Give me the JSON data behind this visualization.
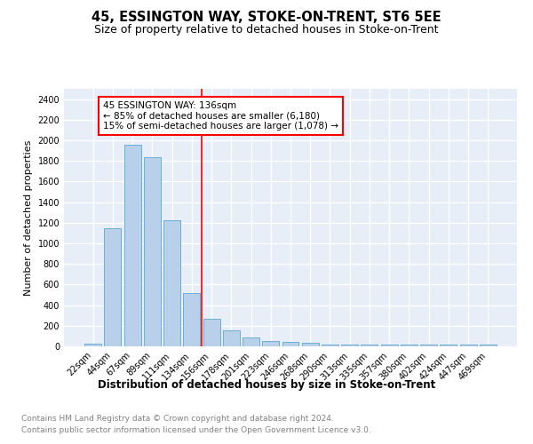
{
  "title": "45, ESSINGTON WAY, STOKE-ON-TRENT, ST6 5EE",
  "subtitle": "Size of property relative to detached houses in Stoke-on-Trent",
  "xlabel": "Distribution of detached houses by size in Stoke-on-Trent",
  "ylabel": "Number of detached properties",
  "bar_labels": [
    "22sqm",
    "44sqm",
    "67sqm",
    "89sqm",
    "111sqm",
    "134sqm",
    "156sqm",
    "178sqm",
    "201sqm",
    "223sqm",
    "246sqm",
    "268sqm",
    "290sqm",
    "313sqm",
    "335sqm",
    "357sqm",
    "380sqm",
    "402sqm",
    "424sqm",
    "447sqm",
    "469sqm"
  ],
  "bar_values": [
    30,
    1150,
    1960,
    1840,
    1220,
    520,
    270,
    155,
    85,
    48,
    42,
    35,
    20,
    18,
    18,
    18,
    18,
    18,
    18,
    18,
    18
  ],
  "bar_color": "#b8d0ea",
  "bar_edge_color": "#6baed6",
  "vline_x_idx": 5,
  "vline_color": "red",
  "annotation_text": "45 ESSINGTON WAY: 136sqm\n← 85% of detached houses are smaller (6,180)\n15% of semi-detached houses are larger (1,078) →",
  "annotation_box_color": "white",
  "annotation_box_edge_color": "red",
  "ylim": [
    0,
    2500
  ],
  "yticks": [
    0,
    200,
    400,
    600,
    800,
    1000,
    1200,
    1400,
    1600,
    1800,
    2000,
    2200,
    2400
  ],
  "background_color": "#e8eef8",
  "grid_color": "white",
  "footer_line1": "Contains HM Land Registry data © Crown copyright and database right 2024.",
  "footer_line2": "Contains public sector information licensed under the Open Government Licence v3.0.",
  "title_fontsize": 10.5,
  "subtitle_fontsize": 9,
  "xlabel_fontsize": 8.5,
  "ylabel_fontsize": 8,
  "tick_fontsize": 7,
  "footer_fontsize": 6.5,
  "annotation_fontsize": 7.5
}
